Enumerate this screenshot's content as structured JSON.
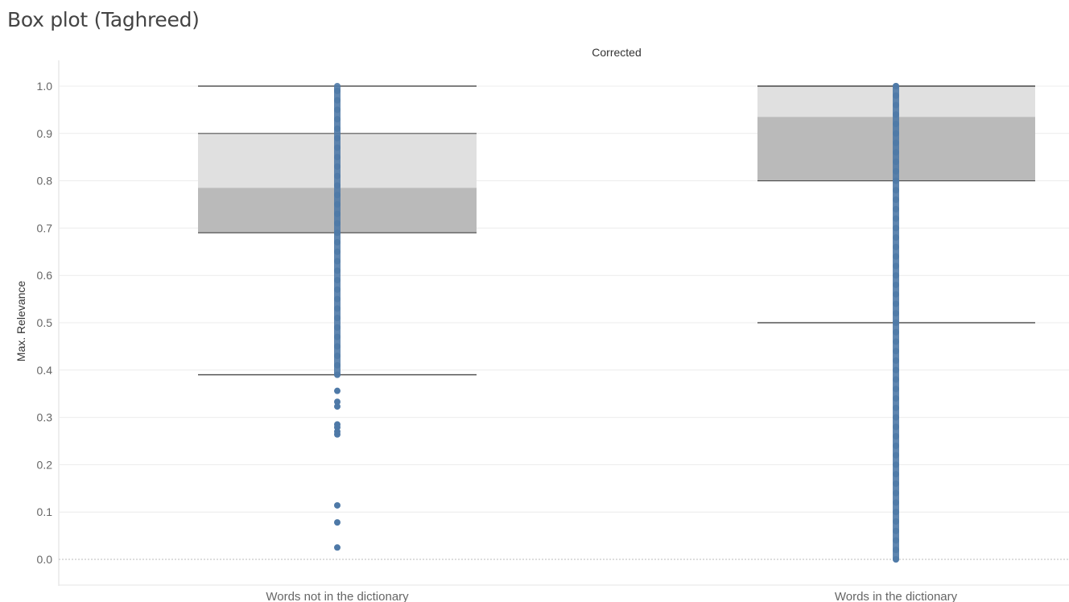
{
  "page": {
    "title": "Box plot (Taghreed)"
  },
  "chart_data": {
    "type": "box",
    "panel_title": "Corrected",
    "ylabel": "Max. Relevance",
    "ylim": [
      0.0,
      1.0
    ],
    "yticks": [
      "0.0",
      "0.1",
      "0.2",
      "0.3",
      "0.4",
      "0.5",
      "0.6",
      "0.7",
      "0.8",
      "0.9",
      "1.0"
    ],
    "grid": true,
    "categories": [
      "Words not in the dictionary",
      "Words in the dictionary"
    ],
    "boxes": [
      {
        "category": "Words not in the dictionary",
        "whisker_low": 0.39,
        "q1": 0.69,
        "median": 0.785,
        "q3": 0.9,
        "whisker_high": 1.0,
        "dense_range": [
          0.39,
          1.0
        ],
        "outliers": [
          0.356,
          0.333,
          0.323,
          0.285,
          0.279,
          0.27,
          0.264,
          0.114,
          0.078,
          0.025
        ]
      },
      {
        "category": "Words in the dictionary",
        "whisker_low": 0.5,
        "q1": 0.8,
        "median": 0.935,
        "q3": 1.0,
        "whisker_high": 1.0,
        "dense_range": [
          0.0,
          1.0
        ],
        "outliers": []
      }
    ],
    "colors": {
      "point": "#4e79a7",
      "box_upper": "#e0e0e0",
      "box_lower": "#bababa",
      "whisker": "#555555",
      "grid": "#ececec"
    }
  }
}
